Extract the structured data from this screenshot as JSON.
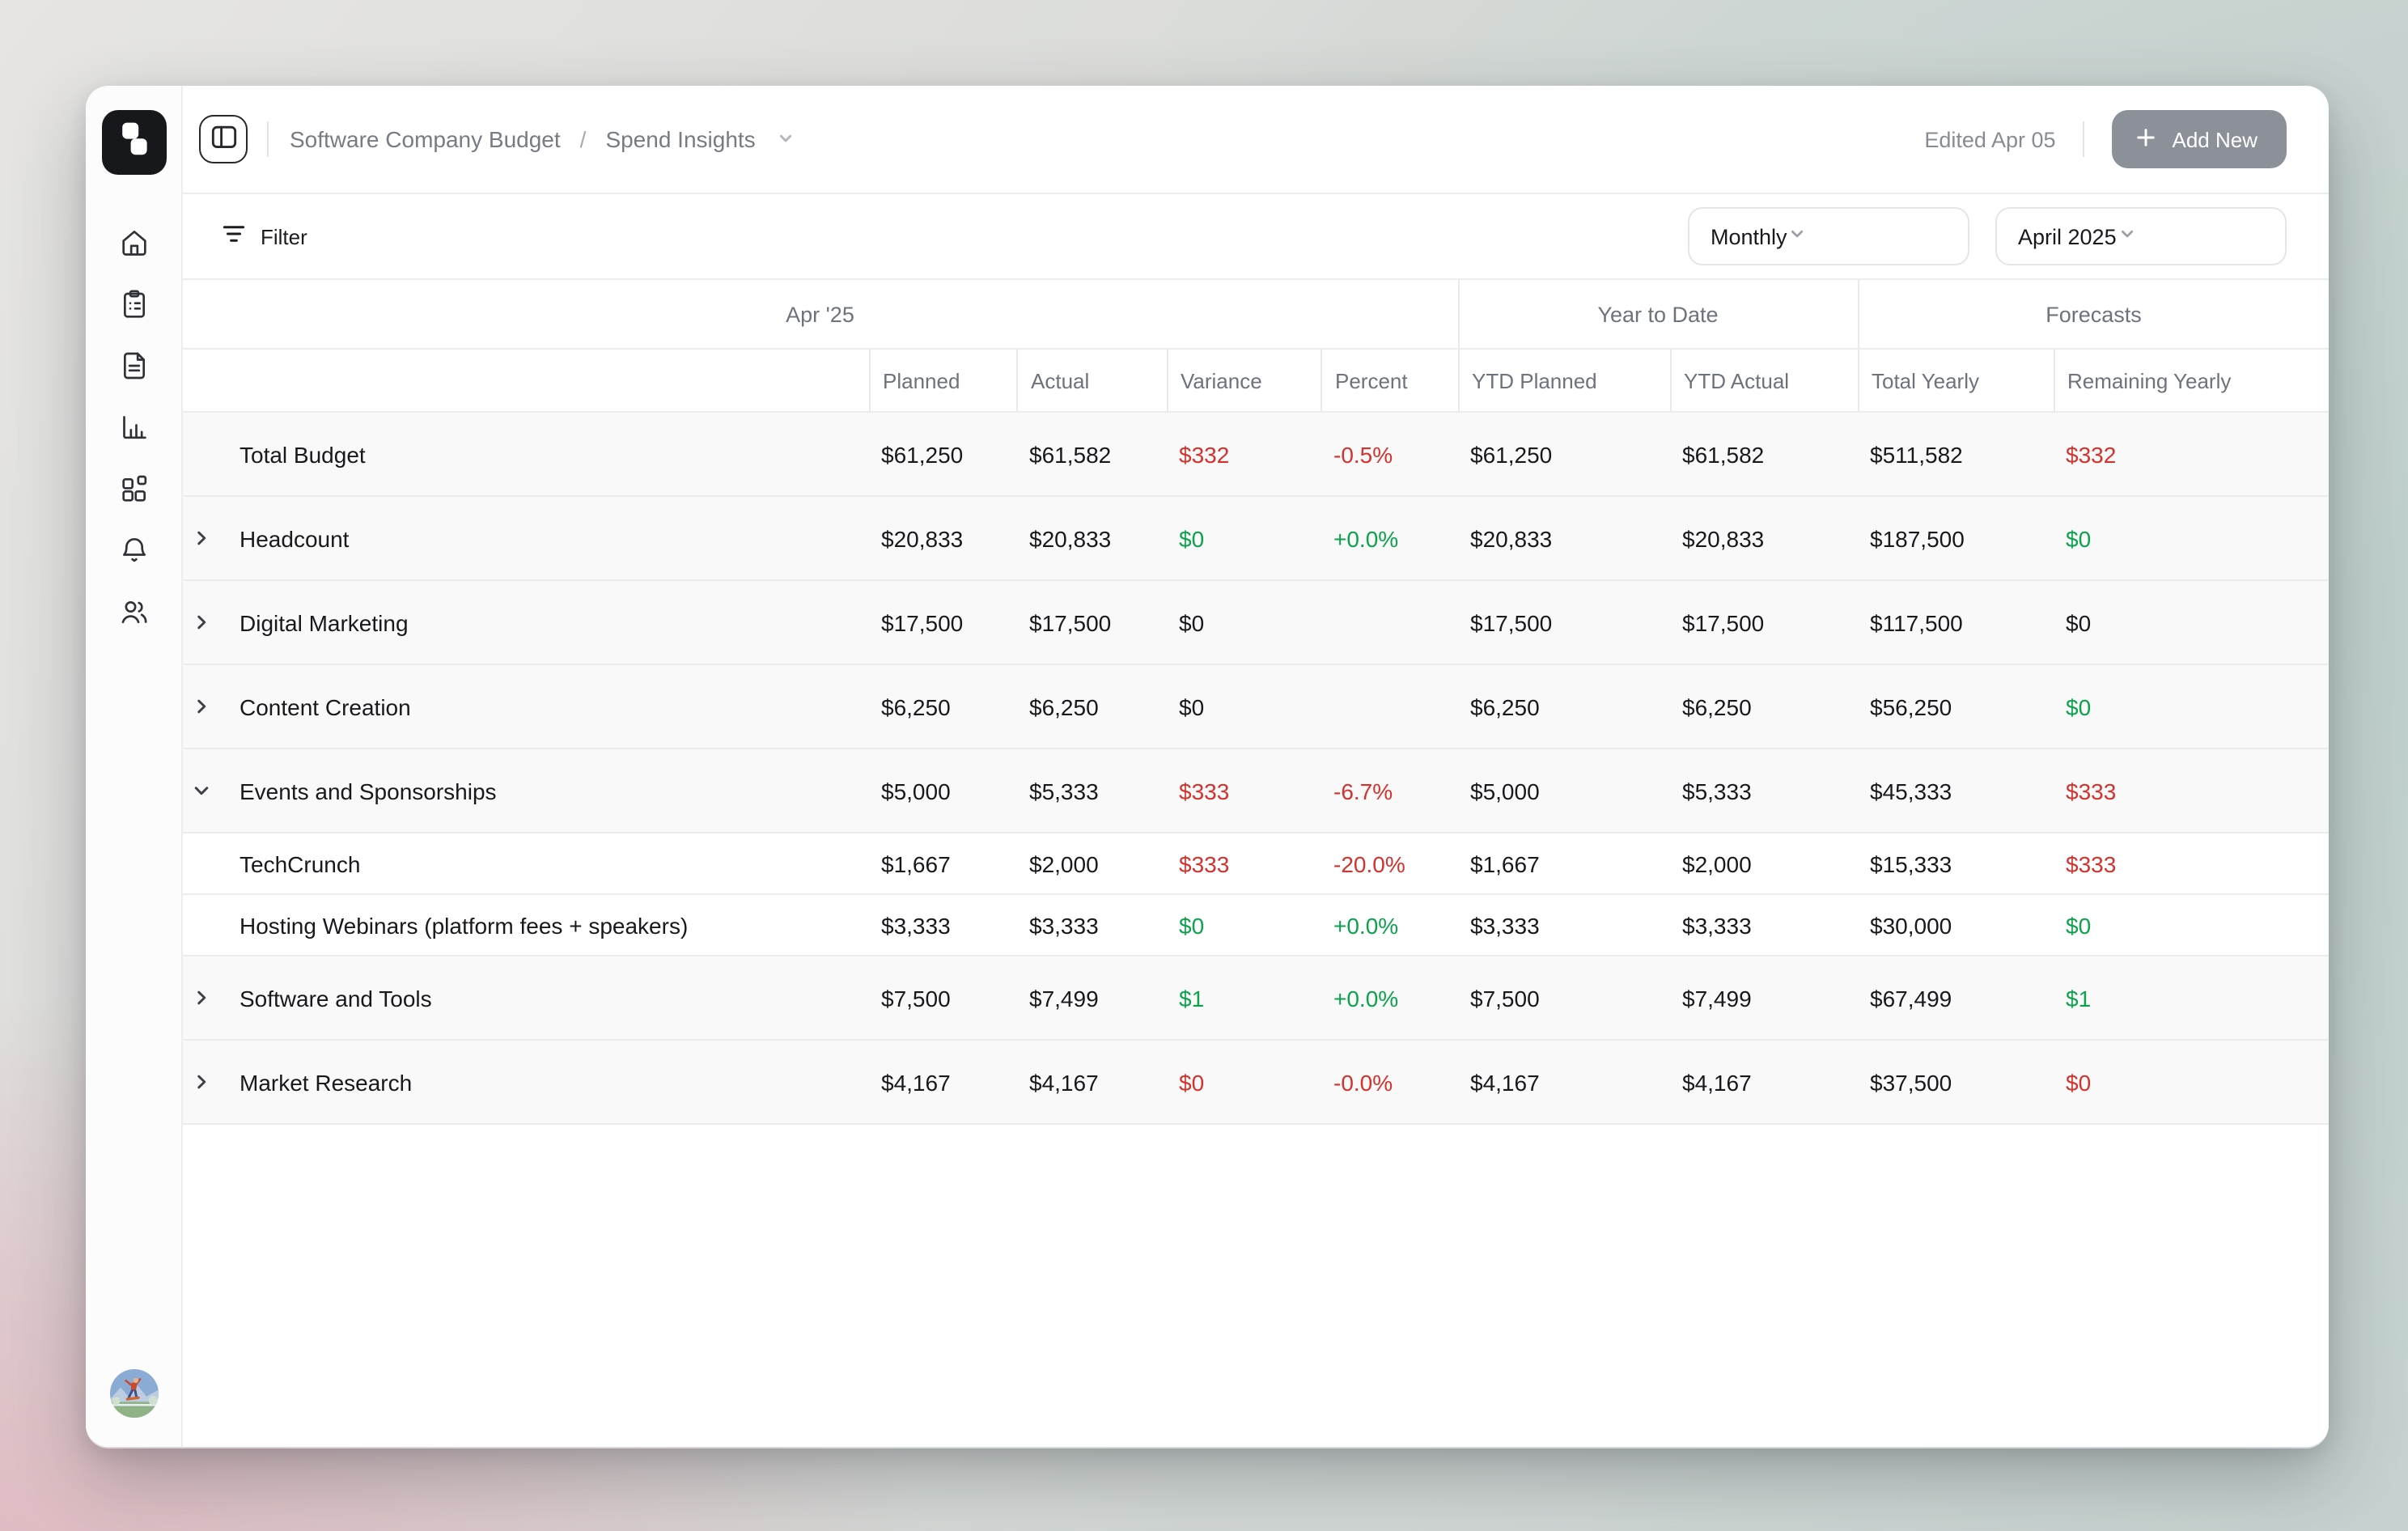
{
  "colors": {
    "red": "#d3322d",
    "green": "#0ca24c",
    "button_gray": "#8c9199",
    "border": "#ececec"
  },
  "breadcrumb": {
    "root": "Software Company Budget",
    "separator": "/",
    "current": "Spend Insights"
  },
  "header": {
    "edited_label": "Edited Apr 05",
    "add_new_label": "Add New"
  },
  "sidebar": {
    "icons": [
      "home",
      "clipboard",
      "document",
      "bar-chart",
      "blocks",
      "bell",
      "users"
    ],
    "avatar": "skateboarder-illustration"
  },
  "toolbar": {
    "filter_label": "Filter",
    "period_value": "Monthly",
    "month_value": "April 2025"
  },
  "table": {
    "groups": [
      {
        "label": "Apr '25"
      },
      {
        "label": "Year to Date"
      },
      {
        "label": "Forecasts"
      }
    ],
    "columns": [
      "",
      "Planned",
      "Actual",
      "Variance",
      "Percent",
      "YTD Planned",
      "YTD Actual",
      "Total Yearly",
      "Remaining Yearly"
    ],
    "rows": [
      {
        "name": "Total Budget",
        "chevron": "none",
        "child": false,
        "cells": [
          {
            "t": "$61,250"
          },
          {
            "t": "$61,582"
          },
          {
            "t": "$332",
            "tone": "red"
          },
          {
            "t": "-0.5%",
            "tone": "red"
          },
          {
            "t": "$61,250"
          },
          {
            "t": "$61,582"
          },
          {
            "t": "$511,582"
          },
          {
            "t": "$332",
            "tone": "red"
          }
        ]
      },
      {
        "name": "Headcount",
        "chevron": "right",
        "child": false,
        "cells": [
          {
            "t": "$20,833"
          },
          {
            "t": "$20,833"
          },
          {
            "t": "$0",
            "tone": "green"
          },
          {
            "t": "+0.0%",
            "tone": "green"
          },
          {
            "t": "$20,833"
          },
          {
            "t": "$20,833"
          },
          {
            "t": "$187,500"
          },
          {
            "t": "$0",
            "tone": "green"
          }
        ]
      },
      {
        "name": "Digital Marketing",
        "chevron": "right",
        "child": false,
        "cells": [
          {
            "t": "$17,500"
          },
          {
            "t": "$17,500"
          },
          {
            "t": "$0"
          },
          {
            "t": ""
          },
          {
            "t": "$17,500"
          },
          {
            "t": "$17,500"
          },
          {
            "t": "$117,500"
          },
          {
            "t": "$0"
          }
        ]
      },
      {
        "name": "Content Creation",
        "chevron": "right",
        "child": false,
        "cells": [
          {
            "t": "$6,250"
          },
          {
            "t": "$6,250"
          },
          {
            "t": "$0"
          },
          {
            "t": ""
          },
          {
            "t": "$6,250"
          },
          {
            "t": "$6,250"
          },
          {
            "t": "$56,250"
          },
          {
            "t": "$0",
            "tone": "green"
          }
        ]
      },
      {
        "name": "Events and Sponsorships",
        "chevron": "down",
        "child": false,
        "cells": [
          {
            "t": "$5,000"
          },
          {
            "t": "$5,333"
          },
          {
            "t": "$333",
            "tone": "red"
          },
          {
            "t": "-6.7%",
            "tone": "red"
          },
          {
            "t": "$5,000"
          },
          {
            "t": "$5,333"
          },
          {
            "t": "$45,333"
          },
          {
            "t": "$333",
            "tone": "red"
          }
        ]
      },
      {
        "name": "TechCrunch",
        "chevron": "none",
        "child": true,
        "cells": [
          {
            "t": "$1,667"
          },
          {
            "t": "$2,000"
          },
          {
            "t": "$333",
            "tone": "red"
          },
          {
            "t": "-20.0%",
            "tone": "red"
          },
          {
            "t": "$1,667"
          },
          {
            "t": "$2,000"
          },
          {
            "t": "$15,333"
          },
          {
            "t": "$333",
            "tone": "red"
          }
        ]
      },
      {
        "name": "Hosting Webinars (platform fees + speakers)",
        "chevron": "none",
        "child": true,
        "cells": [
          {
            "t": "$3,333"
          },
          {
            "t": "$3,333"
          },
          {
            "t": "$0",
            "tone": "green"
          },
          {
            "t": "+0.0%",
            "tone": "green"
          },
          {
            "t": "$3,333"
          },
          {
            "t": "$3,333"
          },
          {
            "t": "$30,000"
          },
          {
            "t": "$0",
            "tone": "green"
          }
        ]
      },
      {
        "name": "Software and Tools",
        "chevron": "right",
        "child": false,
        "cells": [
          {
            "t": "$7,500"
          },
          {
            "t": "$7,499"
          },
          {
            "t": "$1",
            "tone": "green"
          },
          {
            "t": "+0.0%",
            "tone": "green"
          },
          {
            "t": "$7,500"
          },
          {
            "t": "$7,499"
          },
          {
            "t": "$67,499"
          },
          {
            "t": "$1",
            "tone": "green"
          }
        ]
      },
      {
        "name": "Market Research",
        "chevron": "right",
        "child": false,
        "cells": [
          {
            "t": "$4,167"
          },
          {
            "t": "$4,167"
          },
          {
            "t": "$0",
            "tone": "red"
          },
          {
            "t": "-0.0%",
            "tone": "red"
          },
          {
            "t": "$4,167"
          },
          {
            "t": "$4,167"
          },
          {
            "t": "$37,500"
          },
          {
            "t": "$0",
            "tone": "red"
          }
        ]
      }
    ]
  }
}
